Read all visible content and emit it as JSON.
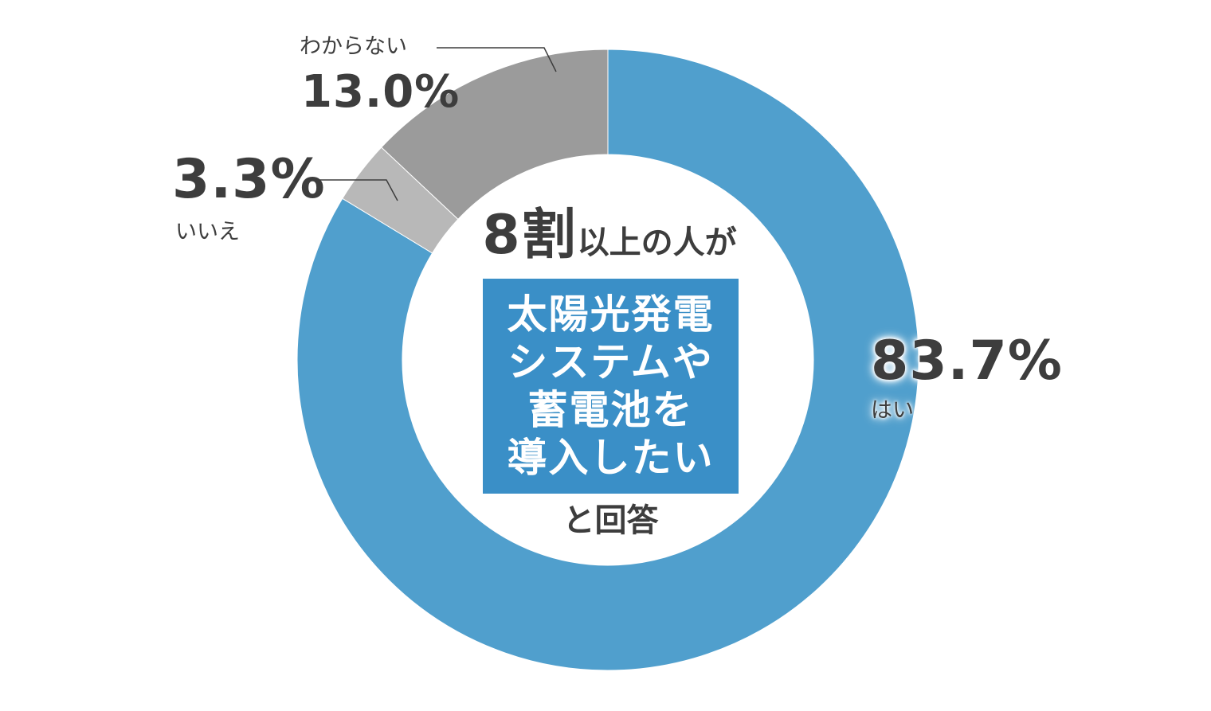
{
  "chart_data": {
    "type": "pie",
    "donut": true,
    "start": "12 o'clock, clockwise",
    "categories": [
      "はい",
      "いいえ",
      "わからない"
    ],
    "values": [
      83.7,
      3.3,
      13.0
    ],
    "value_labels": [
      "83.7%",
      "3.3%",
      "13.0%"
    ],
    "colors": [
      "#509fcd",
      "#b8b8b8",
      "#9b9b9b"
    ],
    "legend": "none"
  },
  "center": {
    "line1_big": "8割",
    "line1_rest": "以上の人が",
    "box_lines": [
      "太陽光発電",
      "システムや",
      "蓄電池を",
      "導入したい"
    ],
    "footer": "と回答",
    "box_color": "#3a8fc7"
  }
}
